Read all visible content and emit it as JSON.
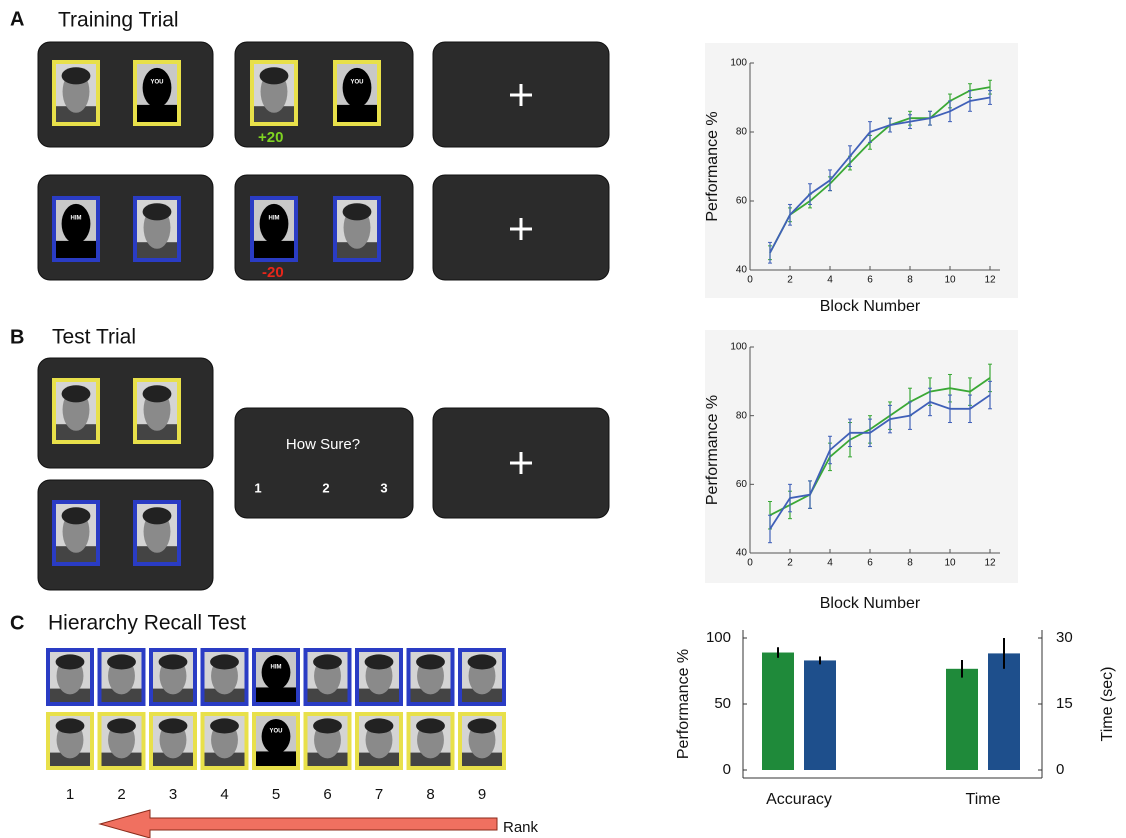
{
  "panel_a": {
    "label": "A",
    "title": "Training Trial",
    "you": "YOU",
    "him": "HIM",
    "gain": "+20",
    "loss": "-20"
  },
  "panel_b": {
    "label": "B",
    "title": "Test Trial",
    "prompt": "How Sure?",
    "options": [
      "1",
      "2",
      "3"
    ]
  },
  "panel_c": {
    "label": "C",
    "title": "Hierarchy Recall Test",
    "you": "YOU",
    "him": "HIM",
    "ranks": [
      "1",
      "2",
      "3",
      "4",
      "5",
      "6",
      "7",
      "8",
      "9"
    ],
    "axis_label": "Rank"
  },
  "chart_data": [
    {
      "type": "line",
      "x": [
        1,
        2,
        3,
        4,
        5,
        6,
        7,
        8,
        9,
        10,
        11,
        12
      ],
      "xlim": [
        0,
        12.5
      ],
      "xticks": [
        0,
        2,
        4,
        6,
        8,
        10,
        12
      ],
      "ylim": [
        40,
        100
      ],
      "yticks": [
        40,
        60,
        80,
        100
      ],
      "xlabel": "Block Number",
      "ylabel": "Performance %",
      "series": [
        {
          "color": "#3aa835",
          "values": [
            45,
            56,
            60,
            65,
            71,
            77,
            82,
            84,
            84,
            89,
            92,
            93
          ],
          "errors": [
            2,
            2,
            2,
            2,
            2,
            2,
            2,
            2,
            2,
            2,
            2,
            2
          ]
        },
        {
          "color": "#4060b8",
          "values": [
            45,
            56,
            62,
            66,
            73,
            80,
            82,
            83,
            84,
            86,
            89,
            90
          ],
          "errors": [
            3,
            3,
            3,
            3,
            3,
            3,
            2,
            2,
            2,
            3,
            3,
            2
          ]
        }
      ]
    },
    {
      "type": "line",
      "x": [
        1,
        2,
        3,
        4,
        5,
        6,
        7,
        8,
        9,
        10,
        11,
        12
      ],
      "xlim": [
        0,
        12.5
      ],
      "xticks": [
        0,
        2,
        4,
        6,
        8,
        10,
        12
      ],
      "ylim": [
        40,
        100
      ],
      "yticks": [
        40,
        60,
        80,
        100
      ],
      "xlabel": "Block Number",
      "ylabel": "Performance %",
      "series": [
        {
          "color": "#3aa835",
          "values": [
            51,
            54,
            57,
            68,
            73,
            76,
            80,
            84,
            87,
            88,
            87,
            91
          ],
          "errors": [
            4,
            4,
            4,
            4,
            5,
            4,
            4,
            4,
            4,
            4,
            4,
            4
          ]
        },
        {
          "color": "#4060b8",
          "values": [
            47,
            56,
            57,
            70,
            75,
            75,
            79,
            80,
            84,
            82,
            82,
            86
          ],
          "errors": [
            4,
            4,
            4,
            4,
            4,
            4,
            4,
            4,
            4,
            4,
            4,
            4
          ]
        }
      ]
    },
    {
      "type": "bar",
      "categories": [
        "Accuracy",
        "Time"
      ],
      "category_axes": [
        "y",
        "y2"
      ],
      "ylim": [
        0,
        100
      ],
      "yticks": [
        0,
        50,
        100
      ],
      "y2lim": [
        0,
        30
      ],
      "y2ticks": [
        0,
        15,
        30
      ],
      "ylabel": "Performance %",
      "y2label": "Time (sec)",
      "series": [
        {
          "color": "#1f8a3a",
          "values": [
            89,
            23
          ],
          "errors": [
            4,
            2
          ]
        },
        {
          "color": "#1e4f8c",
          "values": [
            83,
            26.5
          ],
          "errors": [
            3,
            3.5
          ]
        }
      ]
    }
  ]
}
